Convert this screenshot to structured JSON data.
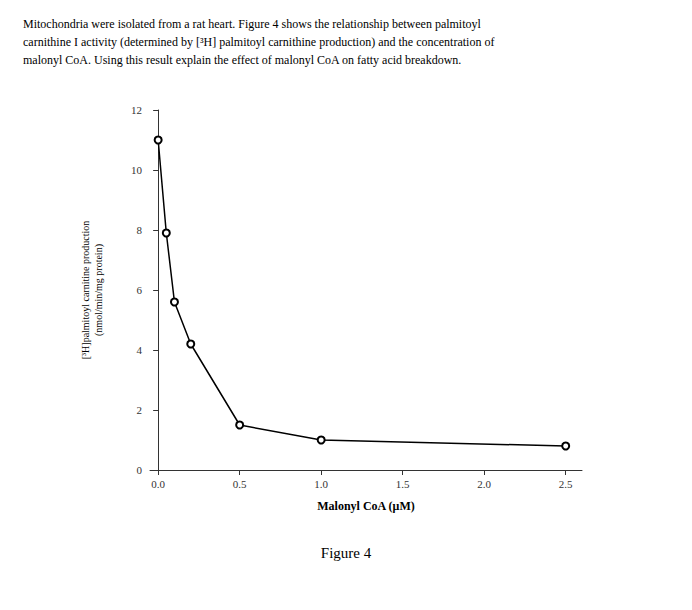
{
  "chart_data": {
    "type": "line",
    "title": "Mitochondria were isolated from a rat heart. Figure 4 shows the relationship between palmitoyl\ncarnithine I activity (determined by [³H] palmitoyl carnithine production) and the concentration of\nmalonyl CoA. Using this result explain the effect of malonyl CoA on fatty acid breakdown.",
    "x_label": "Malonyl CoA (μM)",
    "y_label": "[³H]palmitoyl carnitine production\n(nmol/min/mg protein)",
    "annotations": [
      "Figure 4"
    ],
    "x": [
      0.0,
      0.05,
      0.1,
      0.2,
      0.5,
      1.0,
      2.5
    ],
    "values": [
      11.0,
      7.9,
      5.6,
      4.2,
      1.5,
      1.0,
      0.8
    ],
    "xlim": [
      -0.05,
      2.6
    ],
    "ylim": [
      0,
      12
    ],
    "xticks": [
      {
        "value": 0.0,
        "label": "0.0"
      },
      0.5,
      {
        "value": 1.0,
        "label": "1.0"
      },
      1.5,
      {
        "value": 2.0,
        "label": "2.0"
      },
      2.5
    ],
    "yticks": [
      0,
      2,
      4,
      6,
      8,
      10,
      12
    ],
    "color": "#000000",
    "marker": "circle",
    "grid": false
  }
}
